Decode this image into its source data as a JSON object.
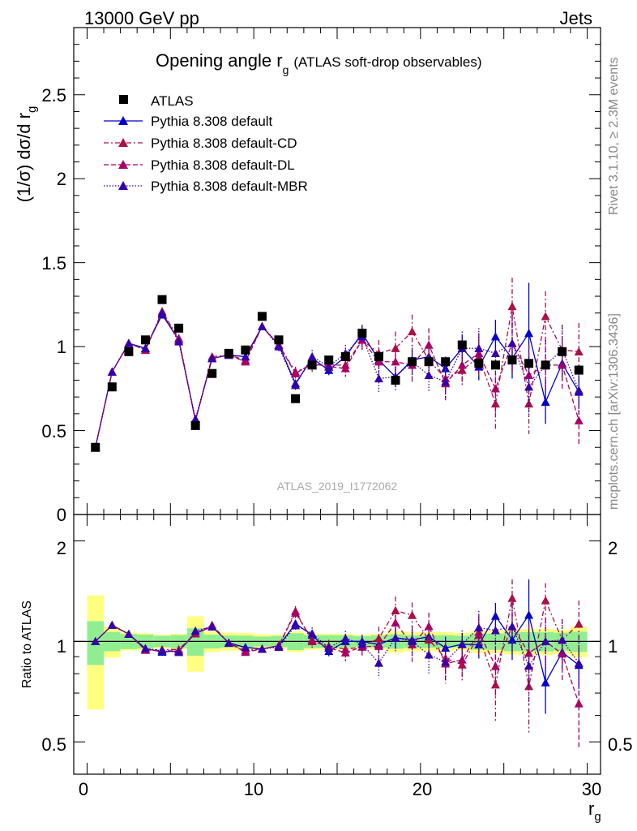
{
  "header": {
    "left": "13000 GeV pp",
    "right": "Jets"
  },
  "side_labels": {
    "rivet": "Rivet 3.1.10, ≥ 2.3M events",
    "mcplots": "mcplots.cern.ch [arXiv:1306.3436]"
  },
  "title": {
    "main": "Opening angle r",
    "sub": "g",
    "suffix": "(ATLAS soft-drop observables)"
  },
  "watermark": "ATLAS_2019_I1772062",
  "axes": {
    "ylabel_top": "(1/σ) dσ/d r",
    "ylabel_top_sub": "g",
    "ylabel_bottom": "Ratio to ATLAS",
    "xlabel": "r",
    "xlabel_sub": "g",
    "x_ticks": [
      "0",
      "10",
      "20",
      "30"
    ],
    "y_ticks_top": [
      "0.5",
      "1",
      "1.5",
      "2",
      "2.5"
    ],
    "y_tick_top_zero": "0",
    "y_ticks_bottom": [
      "0.5",
      "1",
      "2"
    ]
  },
  "legend": {
    "atlas": "ATLAS",
    "default": "Pythia 8.308 default",
    "cd": "Pythia 8.308 default-CD",
    "dl": "Pythia 8.308 default-DL",
    "mbr": "Pythia 8.308 default-MBR"
  },
  "chart_data": {
    "type": "scatter",
    "xlim": [
      -0.8,
      30.8
    ],
    "ylim": [
      0,
      2.9
    ],
    "ratio_ylim": [
      0.4,
      2.4
    ],
    "ratio_log": true,
    "colors": {
      "atlas": "#000000",
      "default": "#0000cc",
      "cd": "#aa1144",
      "dl": "#aa0066",
      "mbr": "#3300aa",
      "band_inner": "#90ee90",
      "band_outer": "#ffff80"
    },
    "x": [
      0.5,
      1.5,
      2.5,
      3.5,
      4.5,
      5.5,
      6.5,
      7.5,
      8.5,
      9.5,
      10.5,
      11.5,
      12.5,
      13.5,
      14.5,
      15.5,
      16.5,
      17.5,
      18.5,
      19.5,
      20.5,
      21.5,
      22.5,
      23.5,
      24.5,
      25.5,
      26.5,
      27.5,
      28.5,
      29.5
    ],
    "atlas": {
      "values": [
        0.4,
        0.76,
        0.97,
        1.04,
        1.28,
        1.11,
        0.53,
        0.84,
        0.96,
        0.98,
        1.18,
        1.04,
        0.69,
        0.89,
        0.92,
        0.94,
        1.08,
        0.94,
        0.8,
        0.91,
        0.91,
        0.91,
        1.01,
        0.9,
        0.89,
        0.92,
        0.9,
        0.89,
        0.97,
        0.86
      ],
      "band_inner": [
        0.06,
        0.05,
        0.05,
        0.05,
        0.05,
        0.05,
        0.05,
        0.04,
        0.04,
        0.04,
        0.04,
        0.04,
        0.04,
        0.04,
        0.04,
        0.04,
        0.04,
        0.04,
        0.04,
        0.04,
        0.04,
        0.04,
        0.04,
        0.05,
        0.05,
        0.06,
        0.06,
        0.06,
        0.06,
        0.06
      ],
      "band_outer": [
        0.15,
        0.08,
        0.06,
        0.06,
        0.06,
        0.06,
        0.1,
        0.06,
        0.06,
        0.06,
        0.06,
        0.05,
        0.05,
        0.05,
        0.05,
        0.05,
        0.05,
        0.05,
        0.06,
        0.06,
        0.06,
        0.06,
        0.06,
        0.07,
        0.07,
        0.08,
        0.08,
        0.08,
        0.08,
        0.09
      ]
    },
    "series": [
      {
        "key": "default",
        "name": "Pythia 8.308 default",
        "style": "solid",
        "values": [
          0.4,
          0.85,
          1.02,
          0.99,
          1.19,
          1.04,
          0.56,
          0.93,
          0.95,
          0.94,
          1.12,
          1.01,
          0.78,
          0.93,
          0.86,
          0.94,
          1.08,
          0.92,
          0.82,
          0.92,
          0.94,
          0.87,
          0.99,
          0.88,
          1.06,
          0.93,
          1.08,
          0.67,
          0.9,
          0.73
        ],
        "errors": [
          0.01,
          0.01,
          0.01,
          0.01,
          0.01,
          0.01,
          0.01,
          0.01,
          0.01,
          0.02,
          0.02,
          0.02,
          0.02,
          0.03,
          0.03,
          0.04,
          0.05,
          0.05,
          0.06,
          0.06,
          0.07,
          0.07,
          0.08,
          0.08,
          0.1,
          0.12,
          0.3,
          0.13,
          0.1,
          0.1
        ]
      },
      {
        "key": "cd",
        "name": "Pythia 8.308 default-CD",
        "style": "dashdot",
        "values": [
          0.4,
          0.85,
          1.02,
          0.98,
          1.21,
          1.05,
          0.56,
          0.94,
          0.95,
          0.92,
          1.12,
          1.01,
          0.85,
          0.89,
          0.89,
          0.89,
          1.04,
          0.96,
          0.99,
          1.09,
          0.92,
          0.81,
          0.86,
          0.94,
          0.66,
          1.24,
          0.66,
          1.18,
          0.98,
          0.97
        ],
        "errors": [
          0.01,
          0.01,
          0.01,
          0.01,
          0.01,
          0.01,
          0.01,
          0.01,
          0.02,
          0.02,
          0.02,
          0.03,
          0.03,
          0.04,
          0.04,
          0.05,
          0.06,
          0.08,
          0.1,
          0.1,
          0.1,
          0.1,
          0.1,
          0.12,
          0.15,
          0.17,
          0.18,
          0.15,
          0.15,
          0.17
        ]
      },
      {
        "key": "dl",
        "name": "Pythia 8.308 default-DL",
        "style": "dashed",
        "values": [
          0.4,
          0.85,
          1.02,
          0.98,
          1.2,
          1.04,
          0.56,
          0.93,
          0.95,
          0.91,
          1.12,
          1.01,
          0.84,
          0.9,
          0.88,
          0.87,
          1.04,
          0.91,
          0.91,
          0.89,
          1.01,
          0.78,
          0.89,
          0.96,
          0.75,
          1.02,
          0.83,
          0.89,
          0.89,
          0.56
        ],
        "errors": [
          0.01,
          0.01,
          0.01,
          0.01,
          0.01,
          0.01,
          0.01,
          0.01,
          0.02,
          0.02,
          0.02,
          0.03,
          0.03,
          0.04,
          0.04,
          0.05,
          0.06,
          0.08,
          0.1,
          0.1,
          0.1,
          0.1,
          0.1,
          0.12,
          0.15,
          0.17,
          0.18,
          0.15,
          0.15,
          0.15
        ]
      },
      {
        "key": "mbr",
        "name": "Pythia 8.308 default-MBR",
        "style": "dotted",
        "values": [
          0.4,
          0.85,
          1.02,
          0.99,
          1.2,
          1.03,
          0.57,
          0.93,
          0.95,
          0.94,
          1.12,
          1.0,
          0.77,
          0.94,
          0.88,
          0.96,
          1.06,
          0.81,
          0.82,
          0.91,
          0.83,
          0.79,
          0.99,
          0.99,
          0.96,
          1.02,
          0.76,
          0.89,
          0.98,
          0.74
        ],
        "errors": [
          0.01,
          0.01,
          0.01,
          0.01,
          0.01,
          0.01,
          0.01,
          0.01,
          0.02,
          0.02,
          0.02,
          0.03,
          0.03,
          0.04,
          0.04,
          0.05,
          0.06,
          0.08,
          0.08,
          0.1,
          0.1,
          0.1,
          0.1,
          0.12,
          0.15,
          0.17,
          0.18,
          0.15,
          0.15,
          0.15
        ]
      }
    ]
  }
}
